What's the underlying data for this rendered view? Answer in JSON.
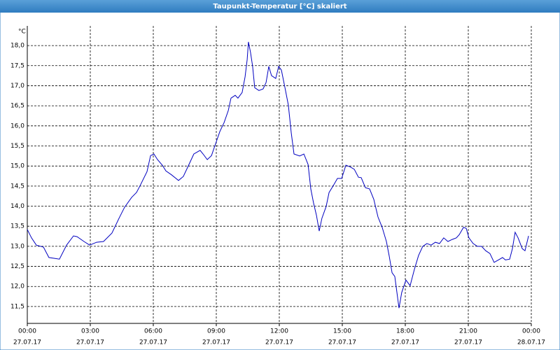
{
  "chart_data": {
    "type": "line",
    "title": "Taupunkt-Temperatur [°C] skaliert",
    "y_unit": "°C",
    "color": "#0000c0",
    "grid": true,
    "xlim": [
      0,
      24
    ],
    "ylim": [
      11.08,
      18.49
    ],
    "xticks": [
      {
        "value": 0,
        "label": "00:00"
      },
      {
        "value": 3,
        "label": "03:00"
      },
      {
        "value": 6,
        "label": "06:00"
      },
      {
        "value": 9,
        "label": "09:00"
      },
      {
        "value": 12,
        "label": "12:00"
      },
      {
        "value": 15,
        "label": "15:00"
      },
      {
        "value": 18,
        "label": "18:00"
      },
      {
        "value": 21,
        "label": "21:00"
      },
      {
        "value": 24,
        "label": "00:00"
      }
    ],
    "xtick_dates": [
      "27.07.17",
      "27.07.17",
      "27.07.17",
      "27.07.17",
      "27.07.17",
      "27.07.17",
      "27.07.17",
      "27.07.17",
      "28.07.17"
    ],
    "yticks": [
      {
        "value": 11.5,
        "label": "11,5"
      },
      {
        "value": 12,
        "label": "12,0"
      },
      {
        "value": 12.5,
        "label": "12,5"
      },
      {
        "value": 13,
        "label": "13,0"
      },
      {
        "value": 13.5,
        "label": "13,5"
      },
      {
        "value": 14,
        "label": "14,0"
      },
      {
        "value": 14.5,
        "label": "14,5"
      },
      {
        "value": 15,
        "label": "15,0"
      },
      {
        "value": 15.5,
        "label": "15,5"
      },
      {
        "value": 16,
        "label": "16,0"
      },
      {
        "value": 16.5,
        "label": "16,5"
      },
      {
        "value": 17,
        "label": "17,0"
      },
      {
        "value": 17.5,
        "label": "17,5"
      },
      {
        "value": 18,
        "label": "18,0"
      }
    ],
    "x": [
      0,
      0.2,
      0.43,
      0.77,
      1.03,
      1.3,
      1.53,
      1.87,
      2.2,
      2.37,
      2.7,
      2.97,
      3.3,
      3.63,
      4.03,
      4.37,
      4.63,
      4.97,
      5.2,
      5.37,
      5.7,
      5.87,
      6.03,
      6.2,
      6.43,
      6.6,
      6.87,
      7.2,
      7.43,
      7.7,
      7.93,
      8.23,
      8.37,
      8.57,
      8.77,
      8.97,
      9.17,
      9.37,
      9.57,
      9.7,
      9.9,
      10.03,
      10.23,
      10.37,
      10.47,
      10.53,
      10.63,
      10.73,
      10.83,
      11.03,
      11.23,
      11.37,
      11.5,
      11.63,
      11.83,
      11.97,
      12.1,
      12.27,
      12.43,
      12.57,
      12.7,
      12.97,
      13.17,
      13.37,
      13.5,
      13.63,
      13.77,
      13.9,
      14.03,
      14.23,
      14.37,
      14.57,
      14.77,
      14.97,
      15.17,
      15.37,
      15.57,
      15.77,
      15.9,
      16.1,
      16.3,
      16.5,
      16.7,
      16.9,
      17.1,
      17.23,
      17.37,
      17.5,
      17.7,
      17.83,
      18.03,
      18.23,
      18.43,
      18.63,
      18.83,
      19.03,
      19.23,
      19.43,
      19.63,
      19.83,
      20.03,
      20.23,
      20.43,
      20.57,
      20.77,
      20.9,
      21.03,
      21.23,
      21.43,
      21.63,
      21.83,
      22.03,
      22.23,
      22.43,
      22.63,
      22.77,
      22.97,
      23.1,
      23.23,
      23.37,
      23.57,
      23.7,
      23.87
    ],
    "values": [
      13.42,
      13.21,
      13.03,
      12.98,
      12.72,
      12.7,
      12.68,
      13.03,
      13.26,
      13.24,
      13.12,
      13.03,
      13.1,
      13.12,
      13.33,
      13.7,
      13.97,
      14.22,
      14.34,
      14.51,
      14.86,
      15.26,
      15.3,
      15.16,
      15.02,
      14.88,
      14.78,
      14.64,
      14.74,
      15.04,
      15.3,
      15.39,
      15.3,
      15.16,
      15.26,
      15.56,
      15.86,
      16.08,
      16.38,
      16.69,
      16.76,
      16.69,
      16.83,
      17.22,
      17.65,
      18.09,
      17.83,
      17.48,
      16.95,
      16.88,
      16.92,
      17.08,
      17.48,
      17.25,
      17.18,
      17.48,
      17.39,
      16.95,
      16.52,
      15.82,
      15.3,
      15.25,
      15.3,
      15.04,
      14.43,
      14.08,
      13.77,
      13.38,
      13.7,
      13.99,
      14.34,
      14.51,
      14.69,
      14.69,
      15.02,
      14.98,
      14.92,
      14.72,
      14.71,
      14.46,
      14.43,
      14.17,
      13.73,
      13.47,
      13.12,
      12.77,
      12.34,
      12.25,
      11.46,
      11.85,
      12.16,
      12.02,
      12.42,
      12.77,
      13.0,
      13.07,
      13.03,
      13.1,
      13.07,
      13.21,
      13.12,
      13.17,
      13.21,
      13.29,
      13.47,
      13.45,
      13.21,
      13.07,
      13.0,
      13.0,
      12.89,
      12.82,
      12.6,
      12.66,
      12.72,
      12.66,
      12.68,
      12.94,
      13.35,
      13.21,
      12.94,
      12.89,
      13.26
    ]
  }
}
